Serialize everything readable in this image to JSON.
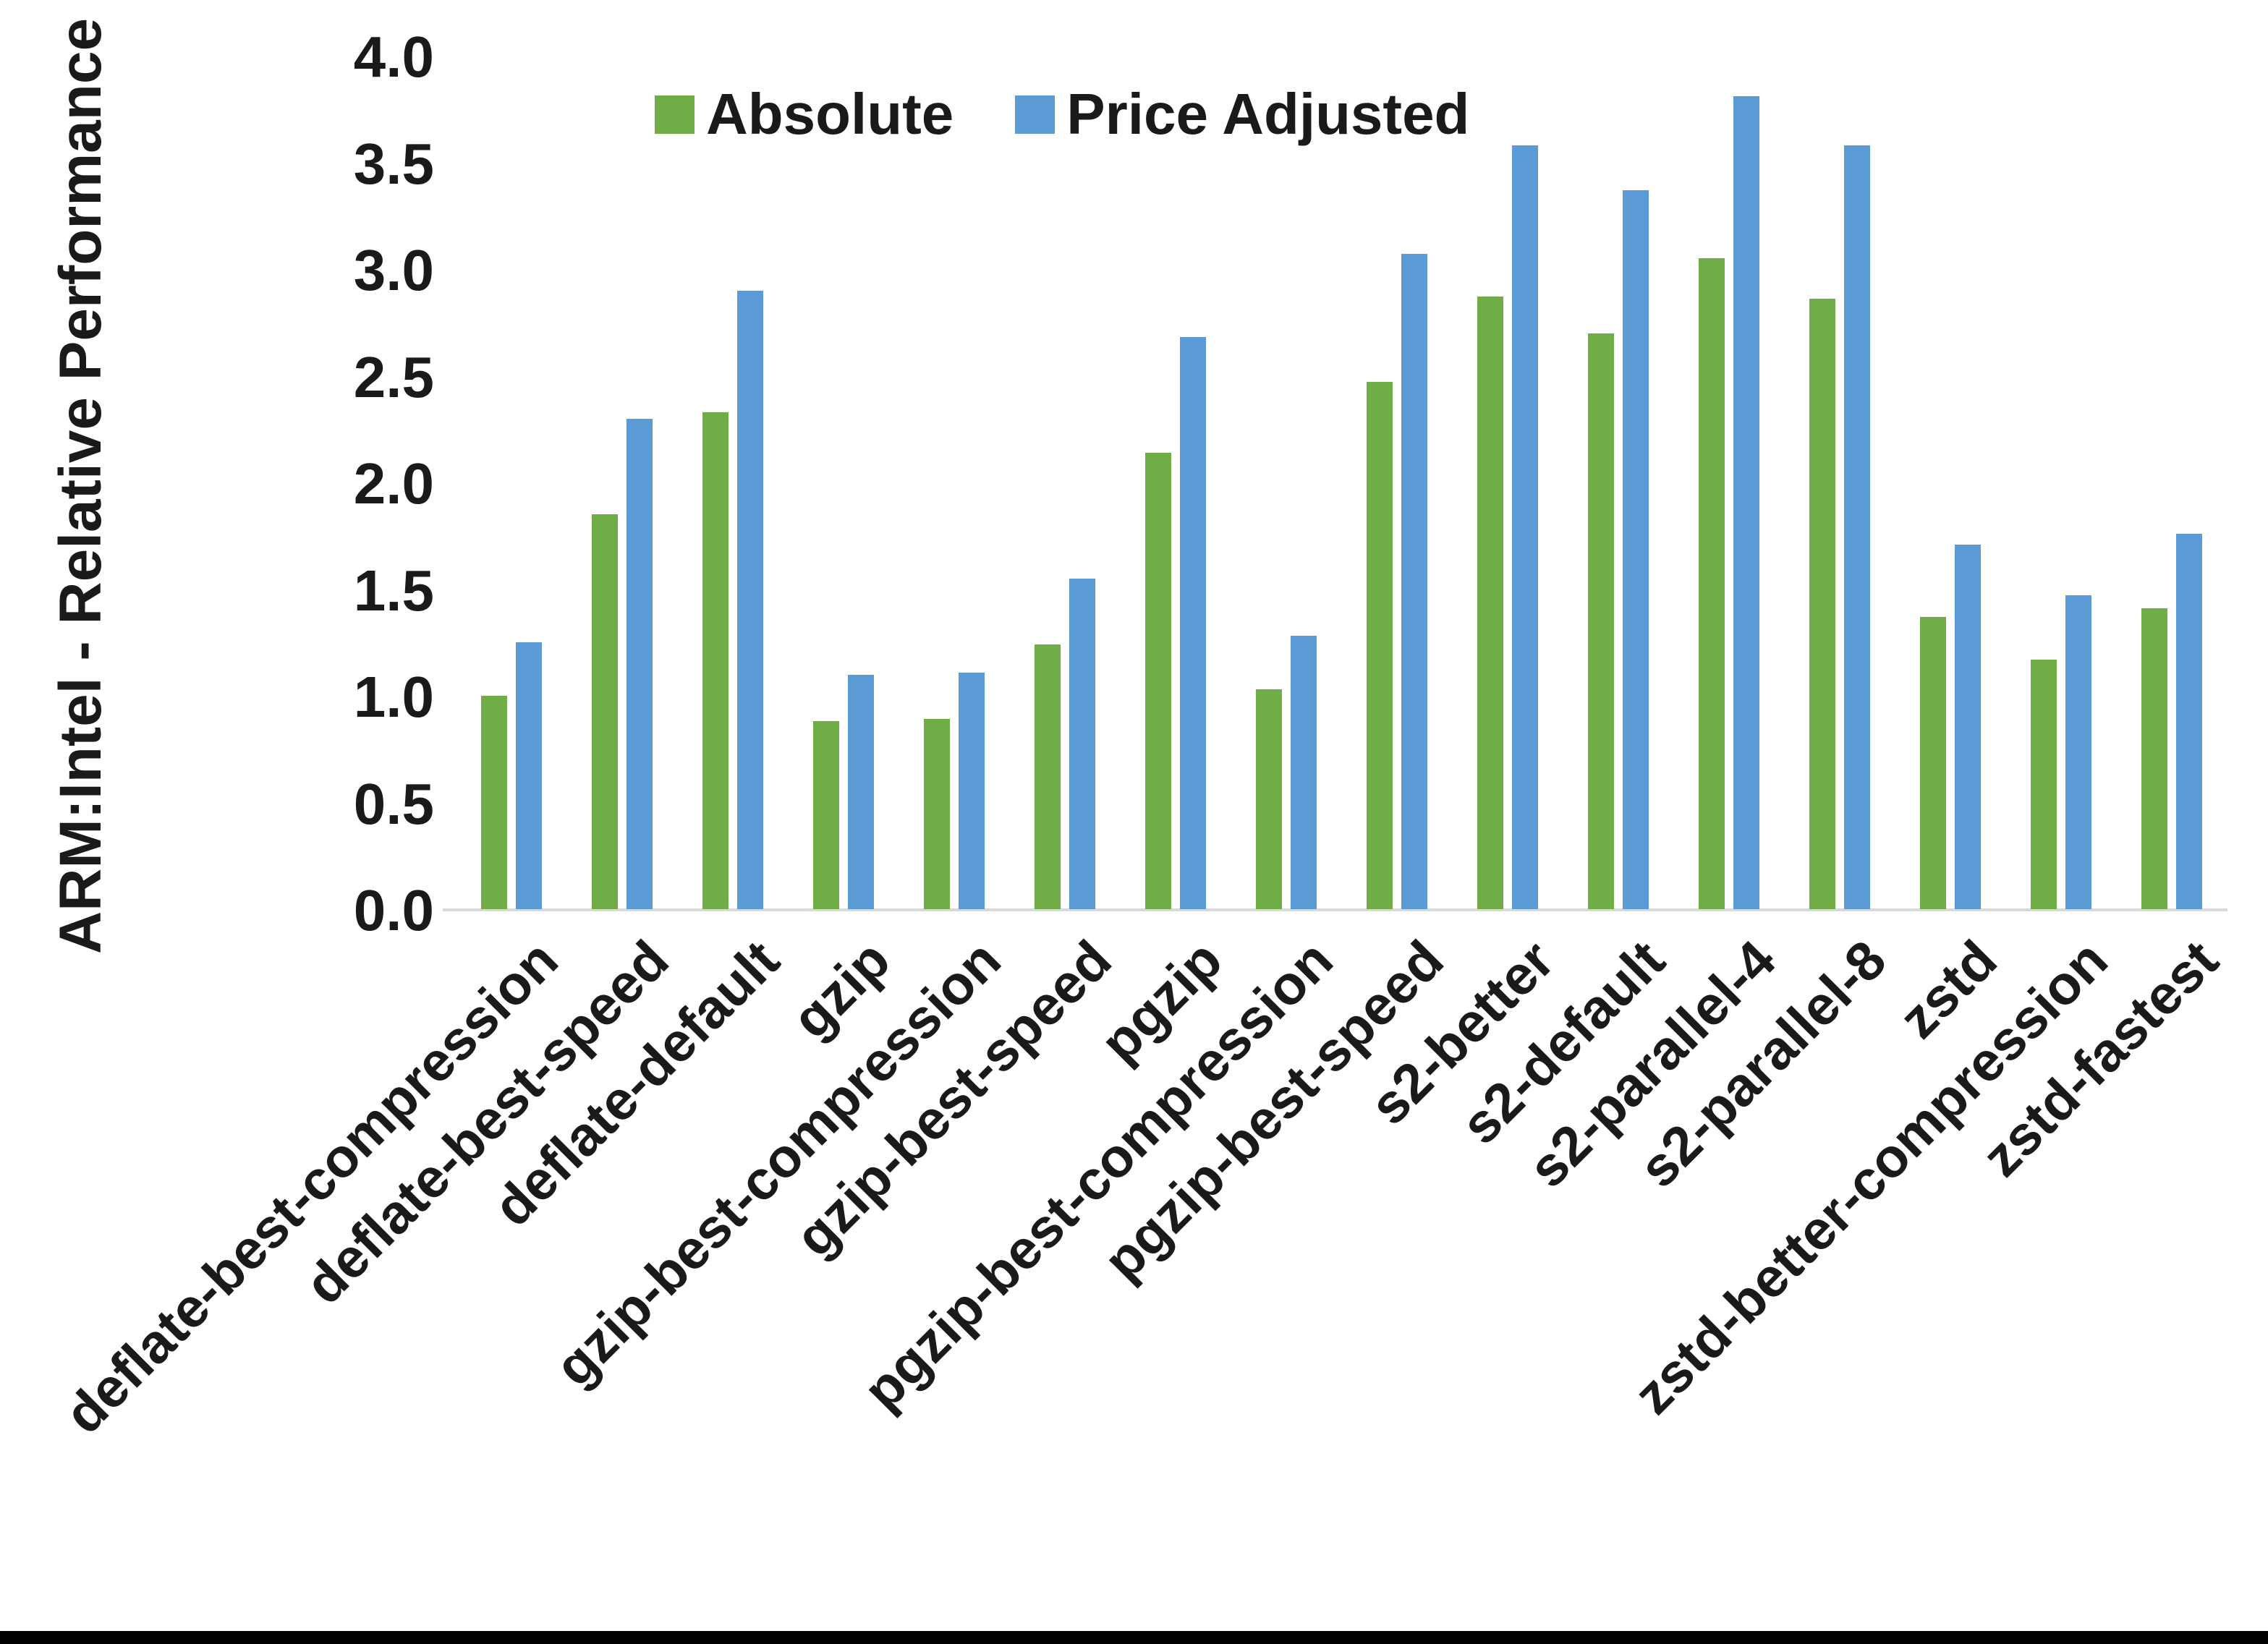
{
  "figure": {
    "background": "#ffffff",
    "bottom_border_color": "#000000",
    "axis_line_color": "#d9d9d9",
    "text_color": "#1a1a1a"
  },
  "chart_data": {
    "type": "bar",
    "title": "",
    "xlabel": "",
    "ylabel": "ARM:Intel - Relative Performance",
    "ylim": [
      0.0,
      4.0
    ],
    "y_tick_step": 0.5,
    "y_ticks": [
      "0.0",
      "0.5",
      "1.0",
      "1.5",
      "2.0",
      "2.5",
      "3.0",
      "3.5",
      "4.0"
    ],
    "grid": false,
    "legend_position": "top-center",
    "x_label_rotation_deg": 45,
    "categories": [
      "deflate-best-compression",
      "deflate-best-speed",
      "deflate-default",
      "gzip",
      "gzip-best-compression",
      "gzip-best-speed",
      "pgzip",
      "pgzip-best-compression",
      "pgzip-best-speed",
      "s2-better",
      "s2-default",
      "s2-parallel-4",
      "s2-parallel-8",
      "zstd",
      "zstd-better-compression",
      "zstd-fastest"
    ],
    "series": [
      {
        "name": "Absolute",
        "color": "#70AD47",
        "values": [
          1.0,
          1.85,
          2.33,
          0.88,
          0.89,
          1.24,
          2.14,
          1.03,
          2.47,
          2.87,
          2.7,
          3.05,
          2.86,
          1.37,
          1.17,
          1.41
        ]
      },
      {
        "name": "Price Adjusted",
        "color": "#5B9BD5",
        "values": [
          1.25,
          2.3,
          2.9,
          1.1,
          1.11,
          1.55,
          2.68,
          1.28,
          3.07,
          3.58,
          3.37,
          3.81,
          3.58,
          1.71,
          1.47,
          1.76
        ]
      }
    ]
  }
}
